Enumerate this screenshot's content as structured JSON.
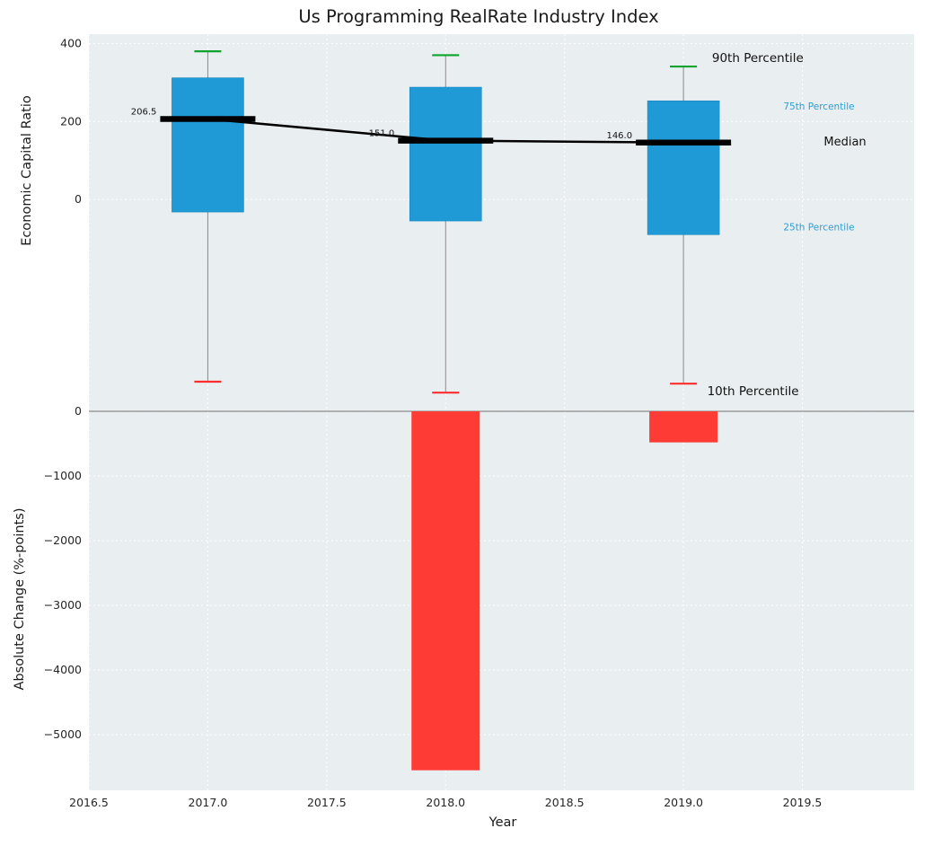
{
  "chart_data": {
    "type": "box",
    "title": "Us Programming RealRate Industry Index",
    "xlabel": "Year",
    "x_range": [
      2016.5,
      2019.97
    ],
    "x_ticks": [
      {
        "v": 2016.5,
        "label": "2016.5"
      },
      {
        "v": 2017.0,
        "label": "2017.0"
      },
      {
        "v": 2017.5,
        "label": "2017.5"
      },
      {
        "v": 2018.0,
        "label": "2018.0"
      },
      {
        "v": 2018.5,
        "label": "2018.5"
      },
      {
        "v": 2019.0,
        "label": "2019.0"
      },
      {
        "v": 2019.5,
        "label": "2019.5"
      }
    ],
    "colors": {
      "box_fill": "#1f9ad6",
      "box_edge": "#1786be",
      "bar_fill": "#ff3b35",
      "p90_cap": "#0ea32c",
      "p10_cap": "#ff2d2d",
      "median": "#000000",
      "whisker": "#888888",
      "plot_bg": "#e9eef1",
      "grid": "#ffffff",
      "zero_line": "#8a8a8a",
      "blue_text": "#2b9fd4",
      "text": "#262626"
    },
    "top_panel": {
      "ylabel": "Economic Capital Ratio",
      "ylim": [
        -536,
        424
      ],
      "y_ticks": [
        {
          "v": 400,
          "label": "400"
        },
        {
          "v": 200,
          "label": "200"
        },
        {
          "v": 0,
          "label": "0"
        }
      ],
      "boxes": [
        {
          "year": 2017,
          "label": "206.5",
          "p10": -467,
          "p25": -32,
          "median": 206.5,
          "p75": 312,
          "p90": 380
        },
        {
          "year": 2018,
          "label": "151.0",
          "p10": -495,
          "p25": -55,
          "median": 151.0,
          "p75": 288,
          "p90": 370
        },
        {
          "year": 2019,
          "label": "146.0",
          "p10": -472,
          "p25": -90,
          "median": 146.0,
          "p75": 253,
          "p90": 341
        }
      ],
      "annotations": [
        {
          "text": "90th Percentile",
          "x": 2019.12,
          "y": 362,
          "color": "#111111",
          "size": 13.5
        },
        {
          "text": "75th Percentile",
          "x": 2019.42,
          "y": 238,
          "color": "#2b9fd4",
          "size": 10.5
        },
        {
          "text": "Median",
          "x": 2019.59,
          "y": 147,
          "color": "#111111",
          "size": 13
        },
        {
          "text": "25th Percentile",
          "x": 2019.42,
          "y": -72,
          "color": "#2b9fd4",
          "size": 10.5
        },
        {
          "text": "10th Percentile",
          "x": 2019.1,
          "y": -492,
          "color": "#111111",
          "size": 13.5
        }
      ]
    },
    "bottom_panel": {
      "ylabel": "Absolute Change (%-points)",
      "ylim": [
        -5860,
        42
      ],
      "y_ticks": [
        {
          "v": 0,
          "label": "0"
        },
        {
          "v": -1000,
          "label": "−1000"
        },
        {
          "v": -2000,
          "label": "−2000"
        },
        {
          "v": -3000,
          "label": "−3000"
        },
        {
          "v": -4000,
          "label": "−4000"
        },
        {
          "v": -5000,
          "label": "−5000"
        }
      ],
      "bars": [
        {
          "year": 2018,
          "value": -5550
        },
        {
          "year": 2019,
          "value": -480
        }
      ]
    }
  }
}
